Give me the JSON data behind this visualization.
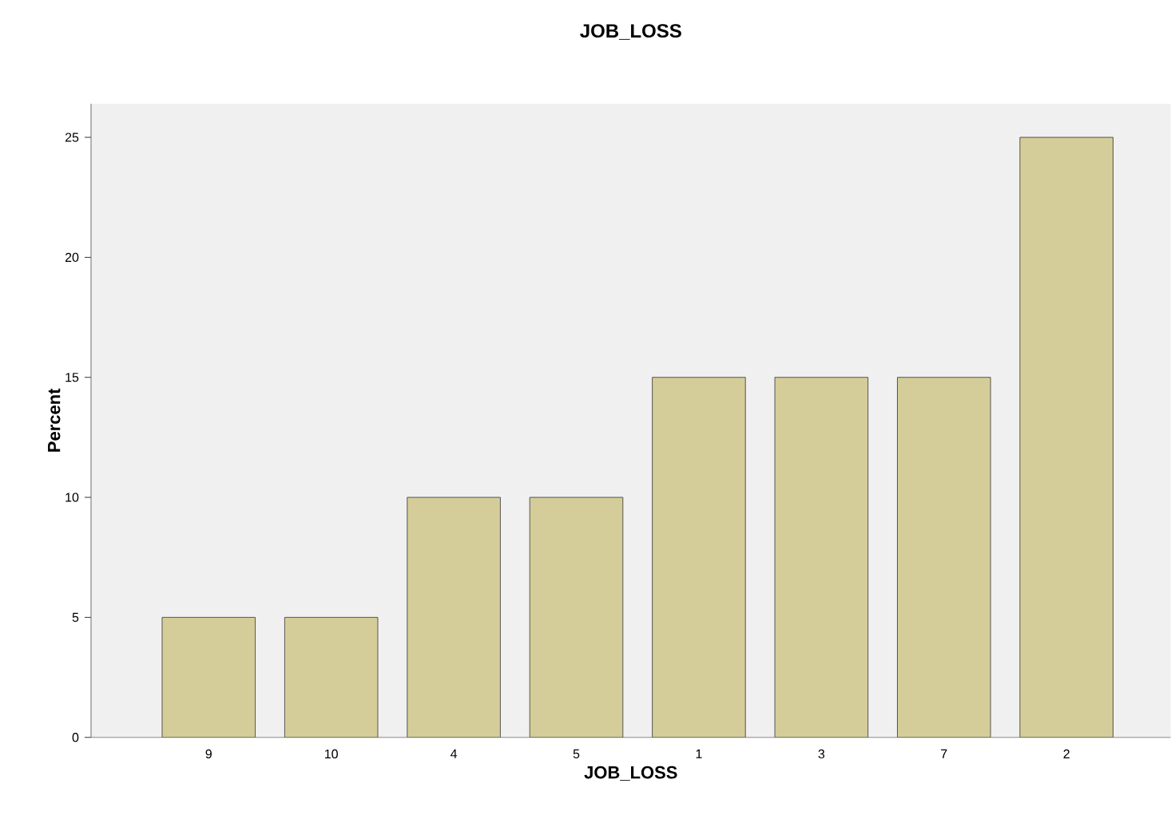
{
  "chart_data": {
    "type": "bar",
    "title": "JOB_LOSS",
    "xlabel": "JOB_LOSS",
    "ylabel": "Percent",
    "categories": [
      "9",
      "10",
      "4",
      "5",
      "1",
      "3",
      "7",
      "2"
    ],
    "values": [
      5,
      5,
      10,
      10,
      15,
      15,
      15,
      25
    ],
    "color": "#d4cd9a",
    "ylim": [
      0,
      26.4
    ],
    "yticks": [
      0,
      5,
      10,
      15,
      20,
      25
    ],
    "grid": false
  }
}
